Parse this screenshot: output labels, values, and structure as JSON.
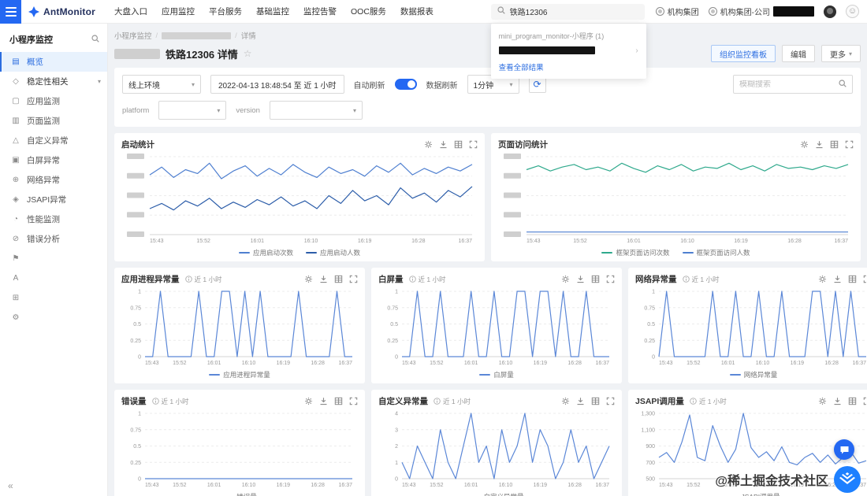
{
  "topbar": {
    "logo_text": "AntMonitor",
    "nav_items": [
      {
        "label": "大盘入口"
      },
      {
        "label": "应用监控"
      },
      {
        "label": "平台服务"
      },
      {
        "label": "基础监控"
      },
      {
        "label": "监控告警"
      },
      {
        "label": "OOC服务"
      },
      {
        "label": "数据报表"
      }
    ],
    "search_value": "铁路12306",
    "search_dropdown": {
      "group_label": "mini_program_monitor-小程序 (1)",
      "view_all": "查看全部结果"
    },
    "org_primary": "机构集团",
    "org_secondary": "机构集团-公司",
    "smiley_glyph": "☺"
  },
  "sidebar": {
    "title": "小程序监控",
    "items": [
      {
        "name": "overview",
        "label": "概览",
        "glyph": "▤",
        "active": true
      },
      {
        "name": "stability-section",
        "label": "稳定性相关",
        "glyph": "◇",
        "section": true
      },
      {
        "name": "app-monitor",
        "label": "应用监测",
        "glyph": "▢"
      },
      {
        "name": "page-monitor",
        "label": "页面监测",
        "glyph": "▥"
      },
      {
        "name": "custom-exception",
        "label": "自定义异常",
        "glyph": "△"
      },
      {
        "name": "blank-screen",
        "label": "白屏异常",
        "glyph": "▣"
      },
      {
        "name": "network-exception",
        "label": "网络异常",
        "glyph": "⊕"
      },
      {
        "name": "jsapi-exception",
        "label": "JSAPI异常",
        "glyph": "◈"
      },
      {
        "name": "perf-monitor",
        "label": "性能监测",
        "glyph": "◔"
      },
      {
        "name": "error-analysis",
        "label": "错误分析",
        "glyph": "⊘"
      }
    ],
    "tool_items": [
      {
        "name": "flag-icon",
        "glyph": "⚑"
      },
      {
        "name": "language-icon",
        "glyph": "A"
      },
      {
        "name": "plugin-icon",
        "glyph": "⊞"
      },
      {
        "name": "settings-icon",
        "glyph": "⚙"
      }
    ],
    "collapse_glyph": "«"
  },
  "page": {
    "breadcrumb_root": "小程序监控",
    "breadcrumb_current": "详情",
    "title": "铁路12306 详情",
    "favorite_icon": "☆",
    "actions": {
      "board": "组织监控看板",
      "edit": "编辑",
      "more": "更多"
    }
  },
  "filters": {
    "env": "线上环境",
    "date_range": "2022-04-13 18:48:54  至  近 1 小时",
    "auto_refresh_label": "自动刷新",
    "data_refresh_label": "数据刷新",
    "interval": "1分钟",
    "refresh_glyph": "⟳",
    "search_placeholder": "模糊搜索",
    "platform_label": "platform",
    "version_label": "version"
  },
  "chart_data": [
    {
      "type": "line",
      "title": "启动统计",
      "badge": "",
      "size": "large",
      "y_redacted": true,
      "ylim": [
        0,
        60
      ],
      "yticks": [
        0,
        15,
        30,
        45,
        60
      ],
      "x_ticks": [
        "15:43",
        "15:52",
        "16:01",
        "16:10",
        "16:19",
        "16:28",
        "16:37"
      ],
      "series": [
        {
          "name": "应用启动次数",
          "color": "#4e7fd0",
          "values": [
            46,
            52,
            44,
            50,
            47,
            55,
            43,
            49,
            53,
            45,
            51,
            46,
            54,
            48,
            44,
            52,
            47,
            50,
            45,
            53,
            48,
            55,
            46,
            51,
            47,
            52,
            49,
            54
          ]
        },
        {
          "name": "应用启动人数",
          "color": "#2c5da9",
          "values": [
            20,
            24,
            19,
            26,
            22,
            28,
            20,
            25,
            21,
            27,
            23,
            29,
            22,
            26,
            20,
            30,
            24,
            34,
            26,
            30,
            23,
            36,
            28,
            32,
            25,
            34,
            29,
            37
          ]
        }
      ]
    },
    {
      "type": "line",
      "title": "页面访问统计",
      "badge": "",
      "size": "large",
      "y_redacted": true,
      "ylim": [
        0,
        60
      ],
      "yticks": [
        0,
        15,
        30,
        45,
        60
      ],
      "x_ticks": [
        "15:43",
        "15:52",
        "16:01",
        "16:10",
        "16:19",
        "16:28",
        "16:37"
      ],
      "series": [
        {
          "name": "框架页面访问次数",
          "color": "#2fa98c",
          "values": [
            50,
            53,
            49,
            52,
            54,
            50,
            52,
            49,
            55,
            51,
            48,
            53,
            50,
            54,
            49,
            52,
            51,
            55,
            50,
            53,
            49,
            54,
            51,
            52,
            50,
            53,
            51,
            54
          ]
        },
        {
          "name": "框架页面访问人数",
          "color": "#4e7fd0",
          "values": [
            2,
            2,
            2,
            2,
            2,
            2,
            2,
            2,
            2,
            2,
            2,
            2,
            2,
            2,
            2,
            2,
            2,
            2,
            2,
            2,
            2,
            2,
            2,
            2,
            2,
            2,
            2,
            2
          ]
        }
      ]
    },
    {
      "type": "line",
      "title": "应用进程异常量",
      "badge": "近 1 小时",
      "size": "small",
      "ylim": [
        0,
        1
      ],
      "yticks": [
        0,
        0.25,
        0.5,
        0.75,
        1
      ],
      "ytick_labels": [
        "0",
        "0.25",
        "0.5",
        "0.75",
        "1"
      ],
      "x_ticks": [
        "15:43",
        "15:52",
        "16:01",
        "16:10",
        "16:19",
        "16:28",
        "16:37"
      ],
      "series": [
        {
          "name": "应用进程异常量",
          "color": "#5b87d7",
          "values": [
            0,
            0,
            1,
            0,
            0,
            0,
            0,
            1,
            0,
            0,
            1,
            1,
            0,
            1,
            0,
            1,
            0,
            0,
            0,
            0,
            1,
            0,
            0,
            0,
            0,
            1,
            0,
            0
          ]
        }
      ]
    },
    {
      "type": "line",
      "title": "白屏量",
      "badge": "近 1 小时",
      "size": "small",
      "ylim": [
        0,
        1
      ],
      "yticks": [
        0,
        0.25,
        0.5,
        0.75,
        1
      ],
      "ytick_labels": [
        "0",
        "0.25",
        "0.5",
        "0.75",
        "1"
      ],
      "x_ticks": [
        "15:43",
        "15:52",
        "16:01",
        "16:10",
        "16:19",
        "16:28",
        "16:37"
      ],
      "series": [
        {
          "name": "白屏量",
          "color": "#5b87d7",
          "values": [
            0,
            0,
            1,
            0,
            0,
            1,
            0,
            0,
            0,
            1,
            0,
            0,
            1,
            0,
            0,
            1,
            1,
            0,
            1,
            1,
            0,
            1,
            0,
            0,
            1,
            0,
            0,
            0
          ]
        }
      ]
    },
    {
      "type": "line",
      "title": "网络异常量",
      "badge": "近 1 小时",
      "size": "small",
      "ylim": [
        0,
        1
      ],
      "yticks": [
        0,
        0.25,
        0.5,
        0.75,
        1
      ],
      "ytick_labels": [
        "0",
        "0.25",
        "0.5",
        "0.75",
        "1"
      ],
      "x_ticks": [
        "15:43",
        "15:52",
        "16:01",
        "16:10",
        "16:19",
        "16:28",
        "16:37"
      ],
      "series": [
        {
          "name": "网络异常量",
          "color": "#5b87d7",
          "values": [
            0,
            1,
            0,
            0,
            0,
            0,
            0,
            1,
            0,
            0,
            1,
            0,
            0,
            1,
            0,
            0,
            1,
            0,
            0,
            0,
            1,
            1,
            0,
            1,
            0,
            1,
            0,
            0
          ]
        }
      ]
    },
    {
      "type": "line",
      "title": "错误量",
      "badge": "近 1 小时",
      "size": "small",
      "ylim": [
        0,
        1
      ],
      "yticks": [
        0,
        0.25,
        0.5,
        0.75,
        1
      ],
      "ytick_labels": [
        "0",
        "0.25",
        "0.5",
        "0.75",
        "1"
      ],
      "x_ticks": [
        "15:43",
        "15:52",
        "16:01",
        "16:10",
        "16:19",
        "16:28",
        "16:37"
      ],
      "series": [
        {
          "name": "错误量",
          "color": "#5b87d7",
          "values": [
            0,
            0,
            0,
            0,
            0,
            0,
            0,
            0,
            0,
            0,
            0,
            0,
            0,
            0,
            0,
            0,
            0,
            0,
            0,
            0,
            0,
            0,
            0,
            0,
            0,
            0,
            0,
            0
          ]
        }
      ]
    },
    {
      "type": "line",
      "title": "自定义异常量",
      "badge": "近 1 小时",
      "size": "small",
      "ylim": [
        0,
        4
      ],
      "yticks": [
        0,
        1,
        2,
        3,
        4
      ],
      "ytick_labels": [
        "0",
        "1",
        "2",
        "3",
        "4"
      ],
      "x_ticks": [
        "15:43",
        "15:52",
        "16:01",
        "16:10",
        "16:19",
        "16:28",
        "16:37"
      ],
      "series": [
        {
          "name": "自定义异常量",
          "color": "#5b87d7",
          "values": [
            1,
            0,
            2,
            1,
            0,
            3,
            1,
            0,
            2,
            4,
            1,
            2,
            0,
            3,
            1,
            2,
            4,
            1,
            3,
            2,
            0,
            1,
            3,
            1,
            2,
            0,
            1,
            2
          ]
        }
      ]
    },
    {
      "type": "line",
      "title": "JSAPI调用量",
      "badge": "近 1 小时",
      "size": "small",
      "ylim": [
        500,
        1300
      ],
      "yticks": [
        500,
        700,
        900,
        1100,
        1300
      ],
      "ytick_labels": [
        "500",
        "700",
        "900",
        "1,100",
        "1,300"
      ],
      "x_ticks": [
        "15:43",
        "15:52",
        "16:01",
        "16:10",
        "16:19",
        "16:28",
        "16:37"
      ],
      "series": [
        {
          "name": "JSAPI调用量",
          "color": "#5b87d7",
          "values": [
            760,
            820,
            700,
            950,
            1280,
            760,
            720,
            1150,
            900,
            700,
            860,
            1300,
            880,
            760,
            830,
            720,
            890,
            700,
            670,
            760,
            810,
            700,
            790,
            680,
            760,
            830,
            690,
            720
          ]
        }
      ]
    }
  ],
  "watermark": "@稀土掘金技术社区"
}
